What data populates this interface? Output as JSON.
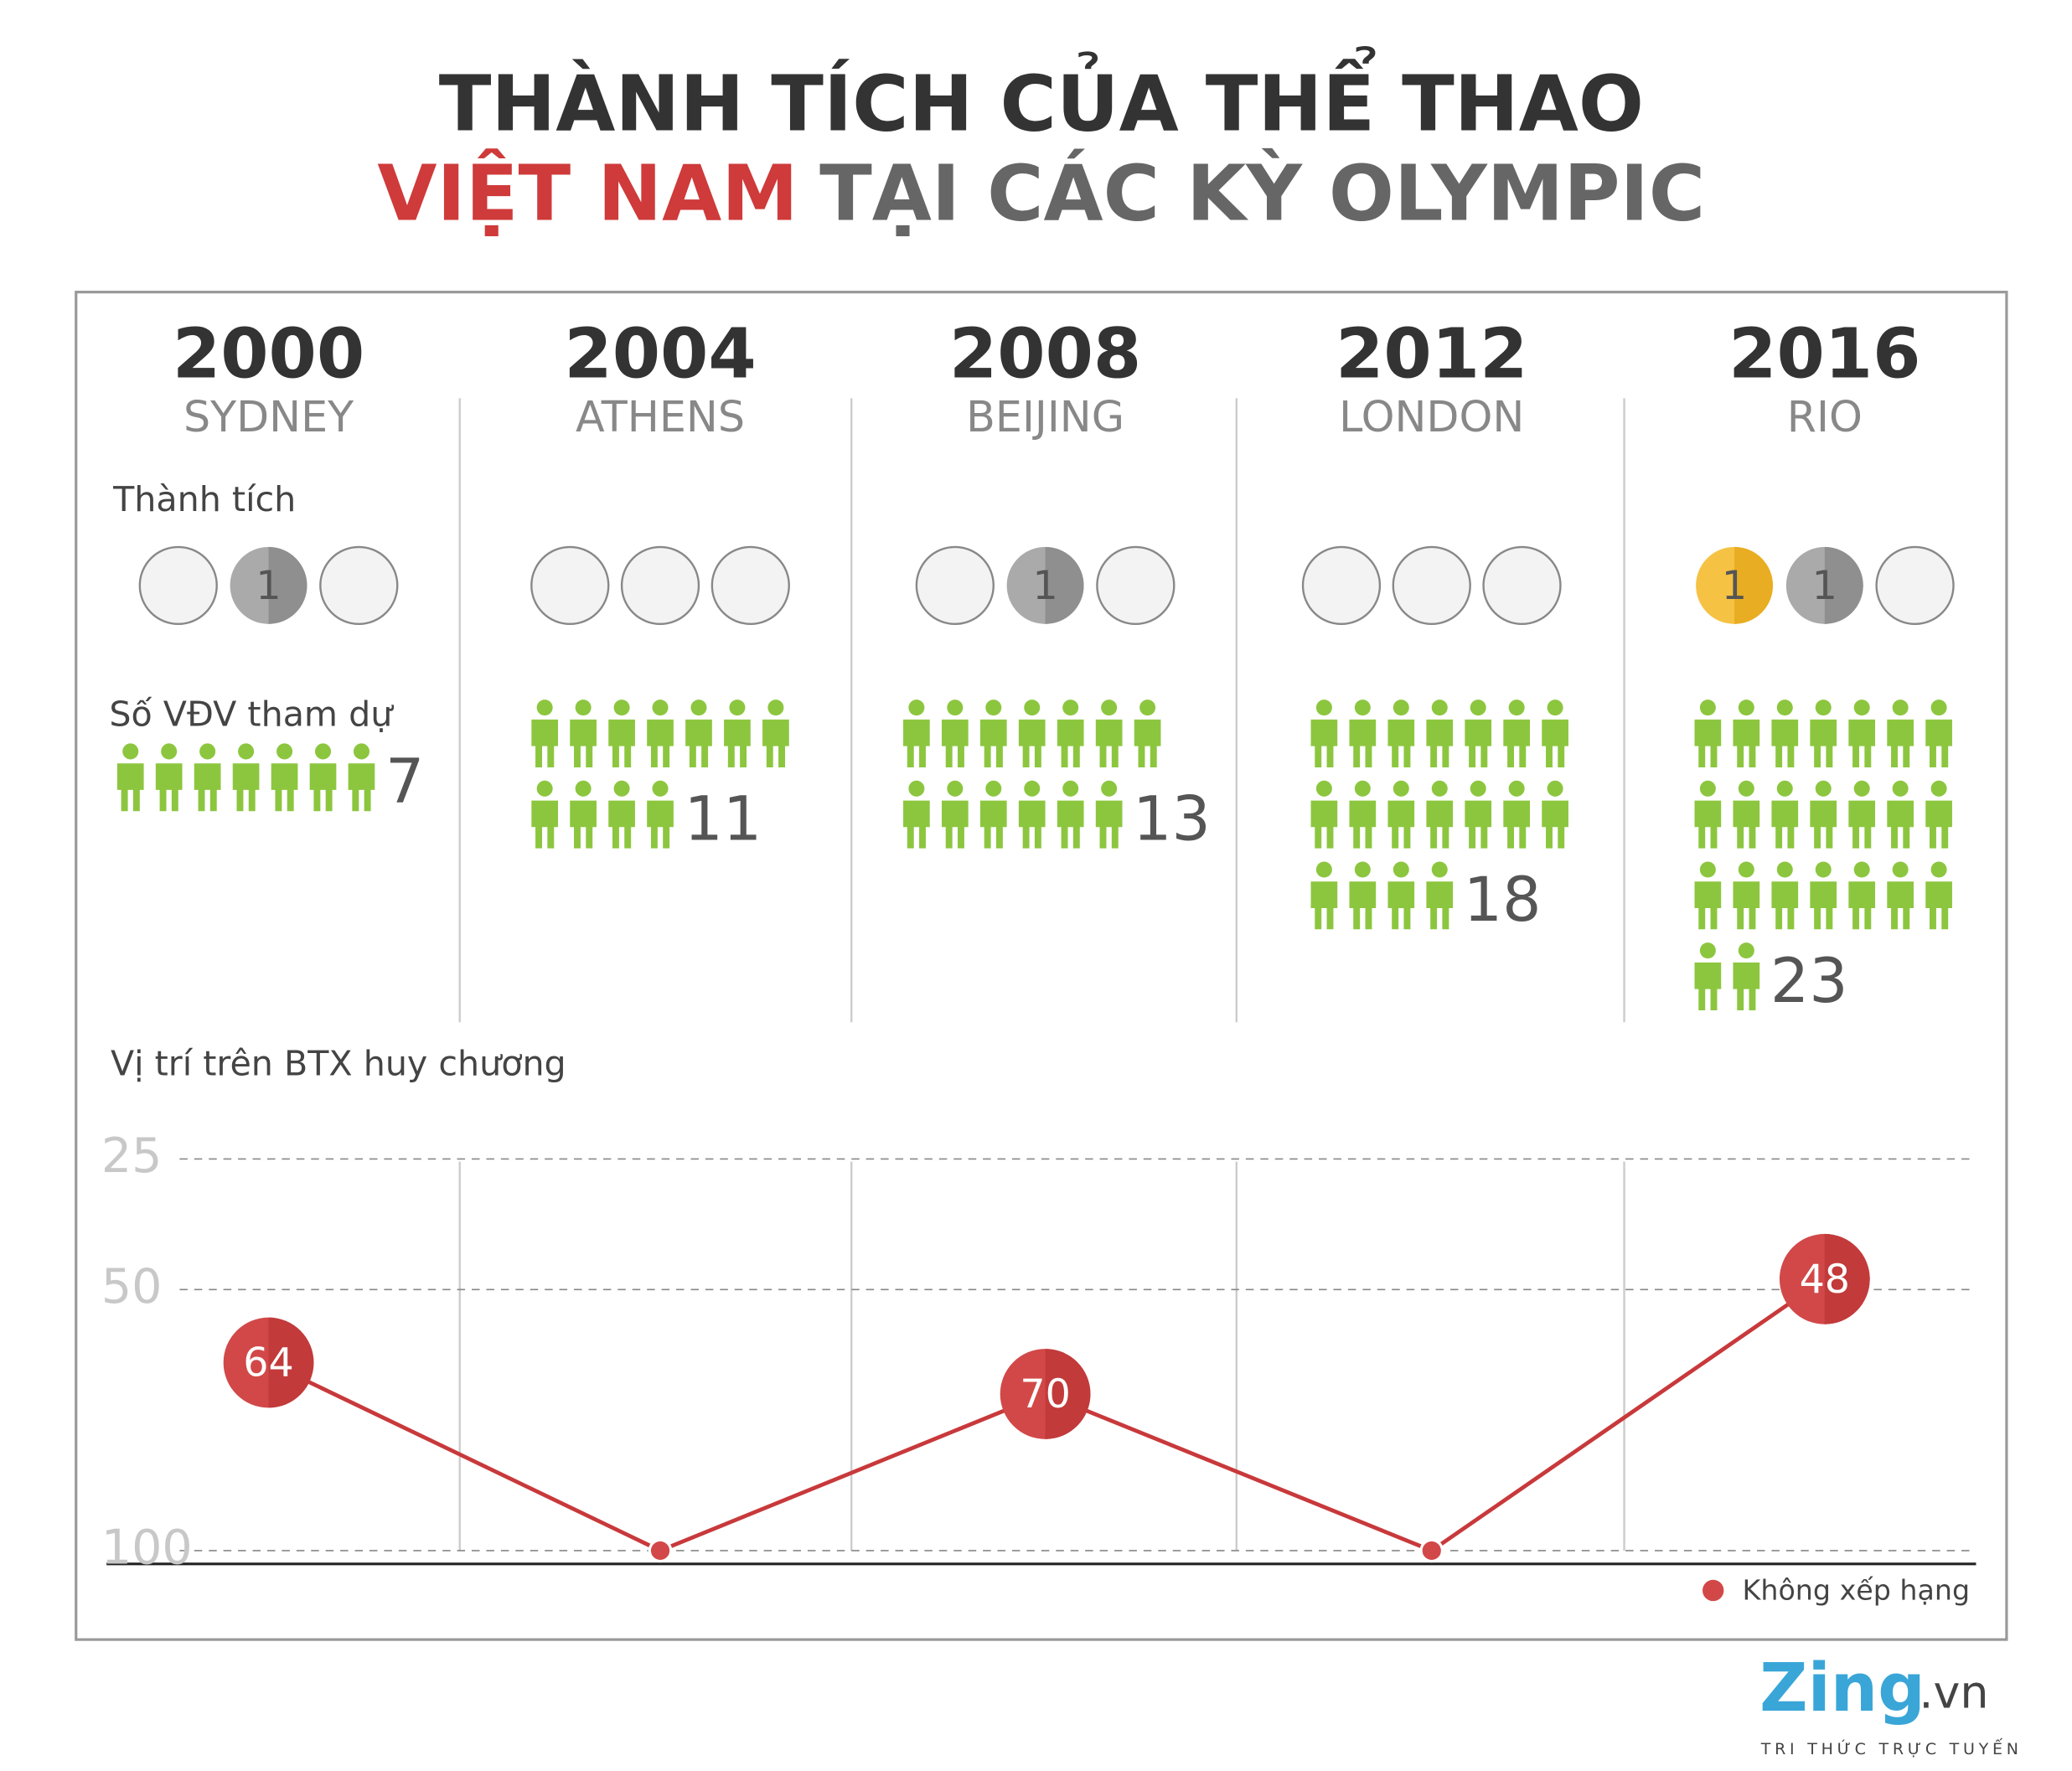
{
  "title_line1": "THÀNH TÍCH CỦA THỂ THAO",
  "title_highlight": "VIỆT NAM",
  "title_rest": "TẠI CÁC KỲ OLYMPIC",
  "labels": {
    "achievement": "Thành tích",
    "athletes": "Số VĐV tham dự"
  },
  "games": [
    {
      "year": "2000",
      "city": "SYDNEY",
      "medals": [
        null,
        1,
        null
      ],
      "athletes": 7
    },
    {
      "year": "2004",
      "city": "ATHENS",
      "medals": [
        null,
        null,
        null
      ],
      "athletes": 11
    },
    {
      "year": "2008",
      "city": "BEIJING",
      "medals": [
        null,
        1,
        null
      ],
      "athletes": 13
    },
    {
      "year": "2012",
      "city": "LONDON",
      "medals": [
        null,
        null,
        null
      ],
      "athletes": 18
    },
    {
      "year": "2016",
      "city": "RIO",
      "medals": [
        1,
        1,
        null
      ],
      "athletes": 23
    }
  ],
  "chart_data": {
    "type": "line",
    "title": "Vị trí trên BTX huy chương",
    "values": [
      64,
      100,
      70,
      100,
      48
    ],
    "unranked": [
      false,
      true,
      false,
      true,
      false
    ],
    "legend": "Không xếp hạng",
    "color": "#c8393b",
    "ylim": [
      100,
      25
    ],
    "yticks": [
      25,
      50,
      100
    ],
    "grid": true
  },
  "logo": {
    "name": "Zing",
    "domain": ".vn",
    "tagline": "TRI THỨC TRỰC TUYẾN"
  }
}
